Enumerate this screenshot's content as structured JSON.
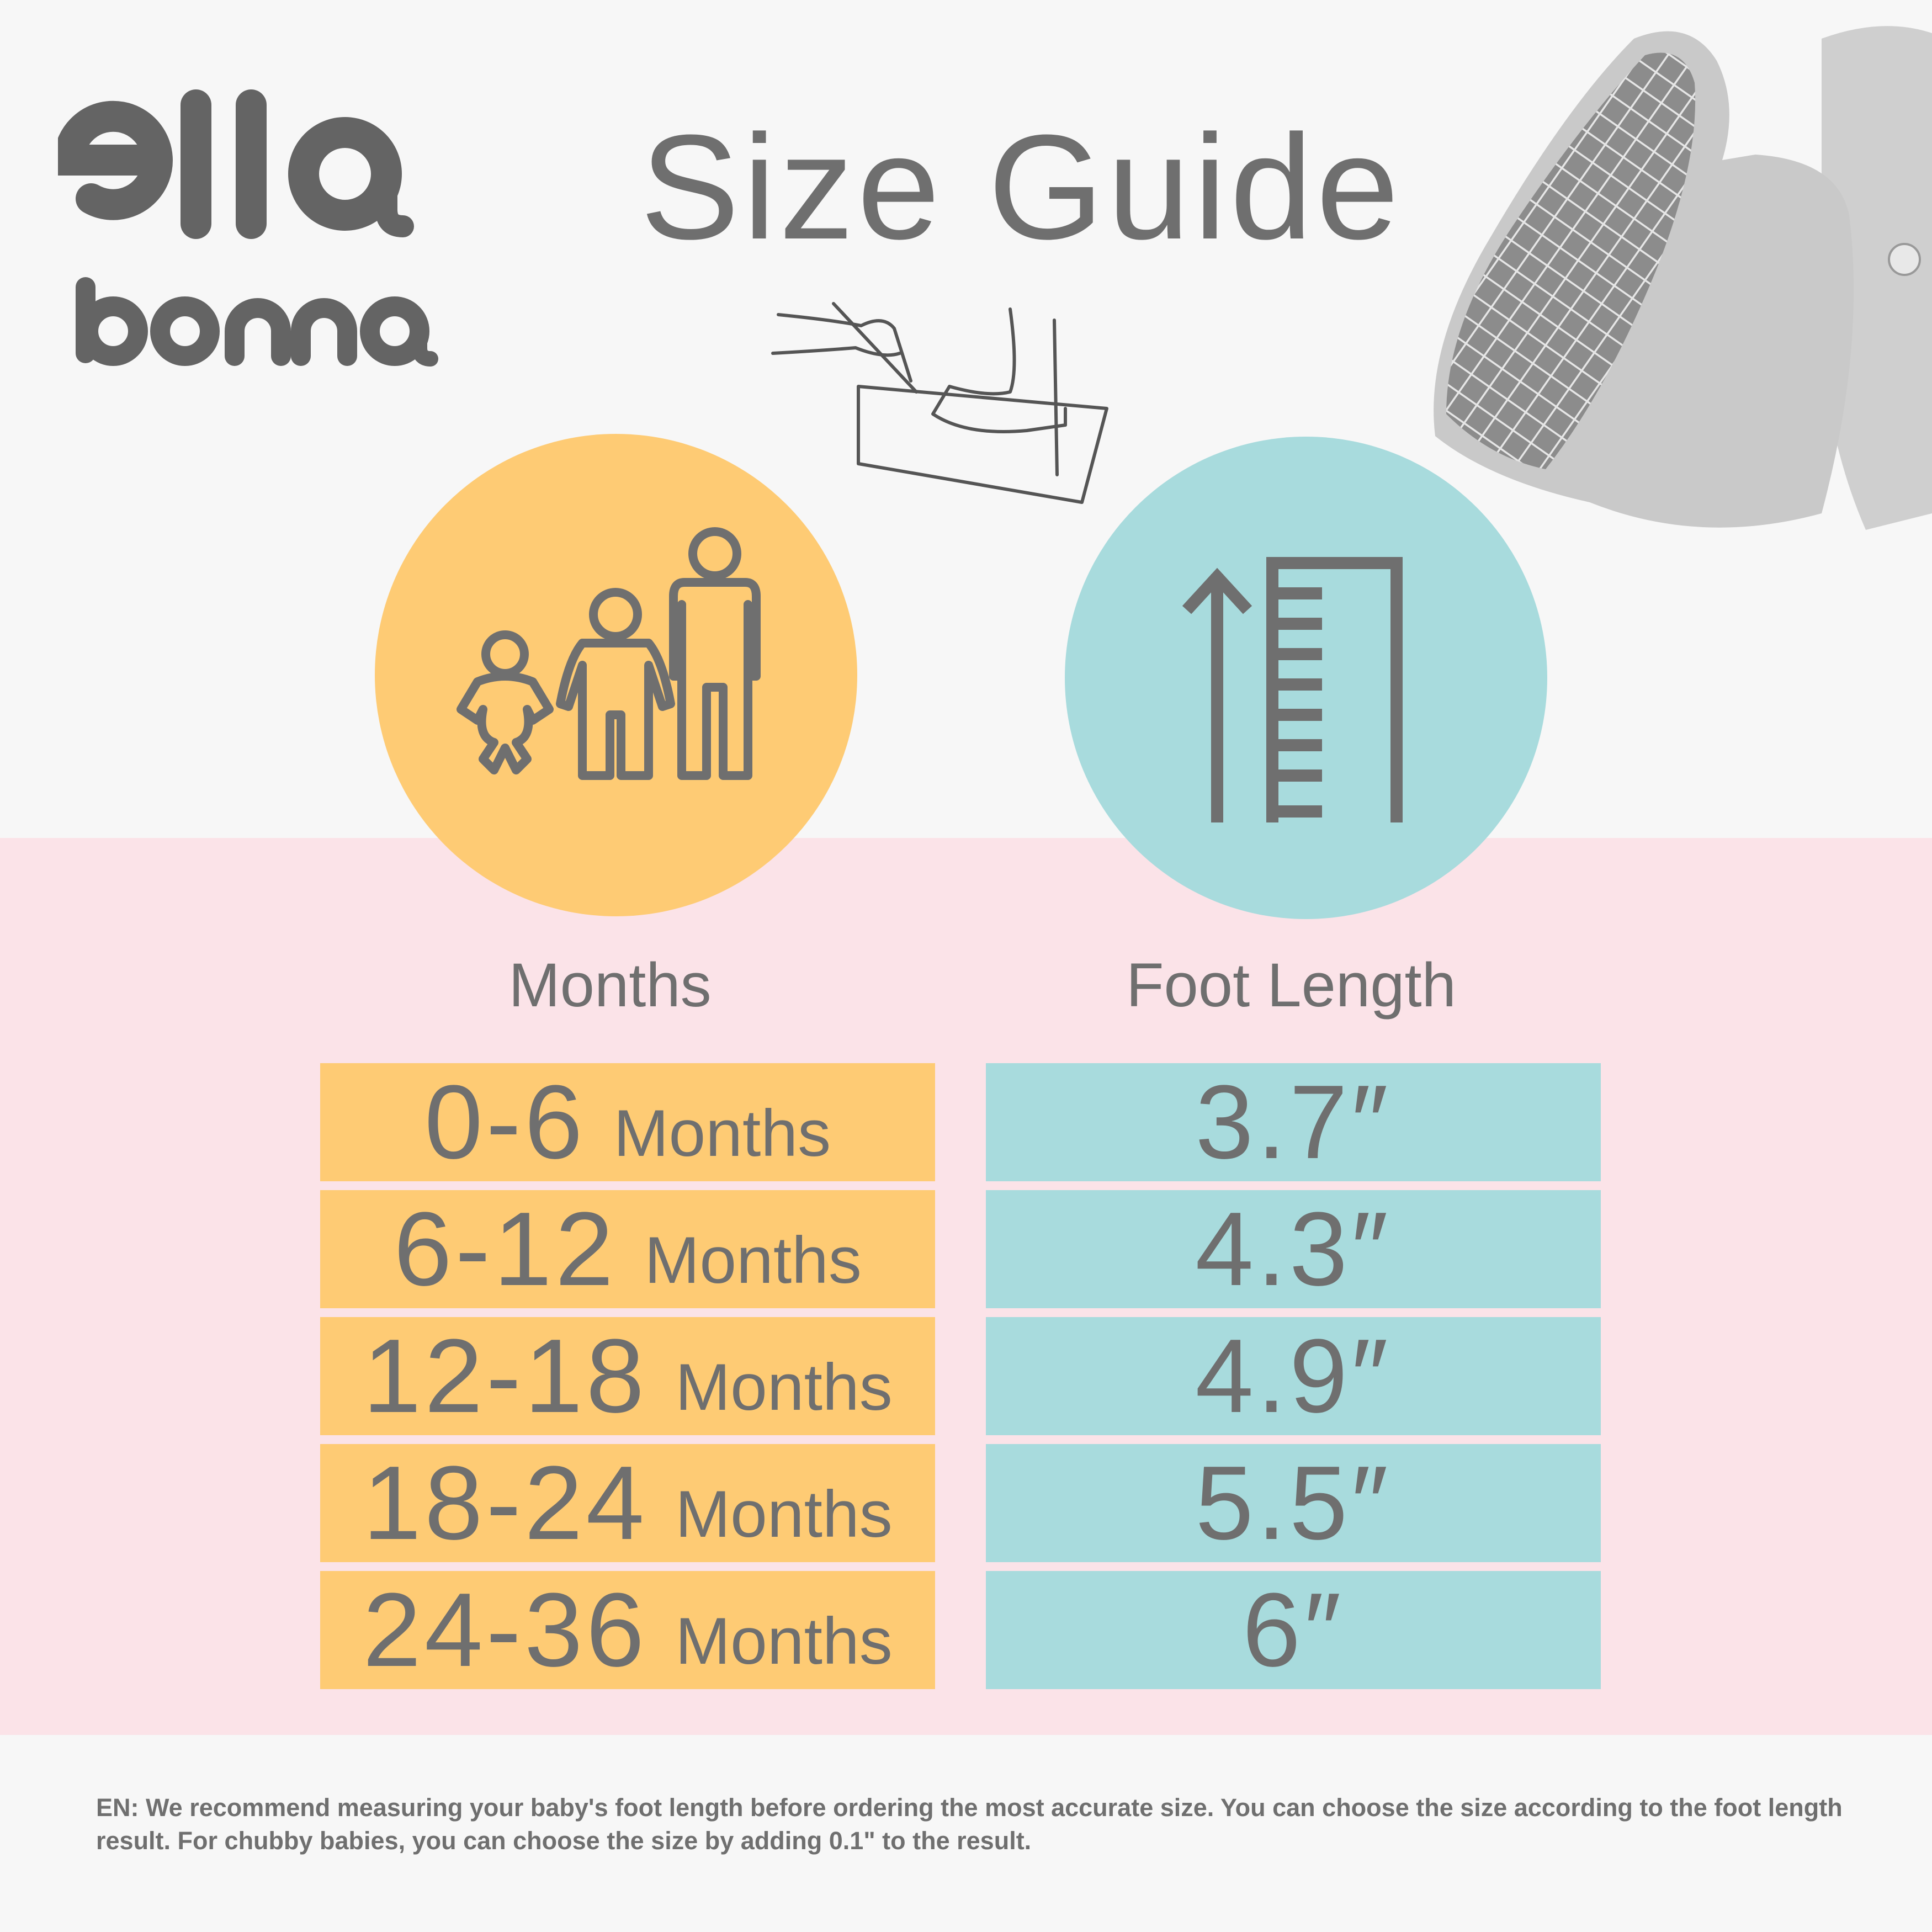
{
  "brand": {
    "logo_text": "ella bonna"
  },
  "title": "Size Guide",
  "colors": {
    "background": "#f7f7f7",
    "band": "#fbe3e8",
    "months": "#fecb74",
    "foot": "#a8dbdd",
    "text": "#6f6f6f"
  },
  "icons": {
    "left": "family-growth-icon",
    "right": "height-ruler-icon",
    "sketch": "foot-measuring-sketch",
    "product": "baby-booties-photo"
  },
  "columns": {
    "months": "Months",
    "foot": "Foot Length"
  },
  "rows": [
    {
      "range": "0-6",
      "unit": "Months",
      "foot": "3.7″"
    },
    {
      "range": "6-12",
      "unit": "Months",
      "foot": "4.3″"
    },
    {
      "range": "12-18",
      "unit": "Months",
      "foot": "4.9″"
    },
    {
      "range": "18-24",
      "unit": "Months",
      "foot": "5.5″"
    },
    {
      "range": "24-36",
      "unit": "Months",
      "foot": "6″"
    }
  ],
  "note": "EN: We recommend measuring your baby's foot length before ordering the most accurate size. You can choose the size according to the foot length result. For chubby babies, you can choose the size by adding 0.1\"  to the result."
}
